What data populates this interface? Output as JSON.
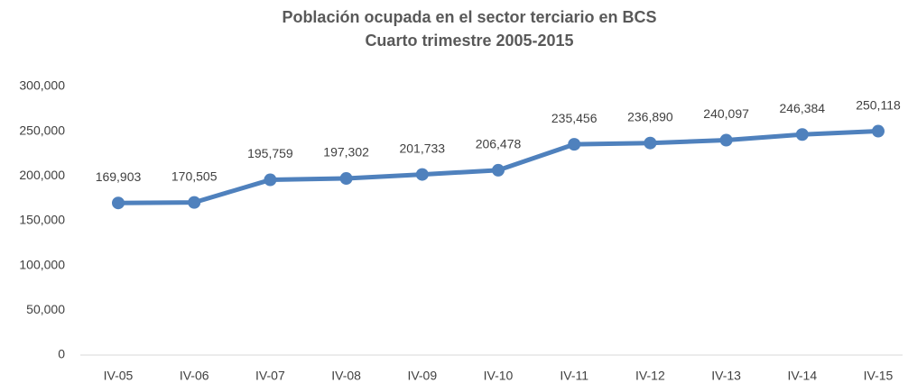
{
  "chart_data": {
    "type": "line",
    "title": "Población ocupada en el sector terciario en BCS",
    "subtitle": "Cuarto trimestre 2005-2015",
    "categories": [
      "IV-05",
      "IV-06",
      "IV-07",
      "IV-08",
      "IV-09",
      "IV-10",
      "IV-11",
      "IV-12",
      "IV-13",
      "IV-14",
      "IV-15"
    ],
    "series": [
      {
        "name": "Población ocupada",
        "color": "#4f81bd",
        "values": [
          169903,
          170505,
          195759,
          197302,
          201733,
          206478,
          235456,
          236890,
          240097,
          246384,
          250118
        ],
        "value_labels": [
          "169,903",
          "170,505",
          "195,759",
          "197,302",
          "201,733",
          "206,478",
          "235,456",
          "236,890",
          "240,097",
          "246,384",
          "250,118"
        ]
      }
    ],
    "ylim": [
      0,
      300000
    ],
    "yticks": [
      0,
      {
        "value": 50000,
        "label": "50,000"
      },
      {
        "value": 100000,
        "label": "100,000"
      },
      {
        "value": 150000,
        "label": "150,000"
      },
      {
        "value": 200000,
        "label": "200,000"
      },
      {
        "value": 250000,
        "label": "250,000"
      },
      {
        "value": 300000,
        "label": "300,000"
      }
    ],
    "grid": false
  }
}
